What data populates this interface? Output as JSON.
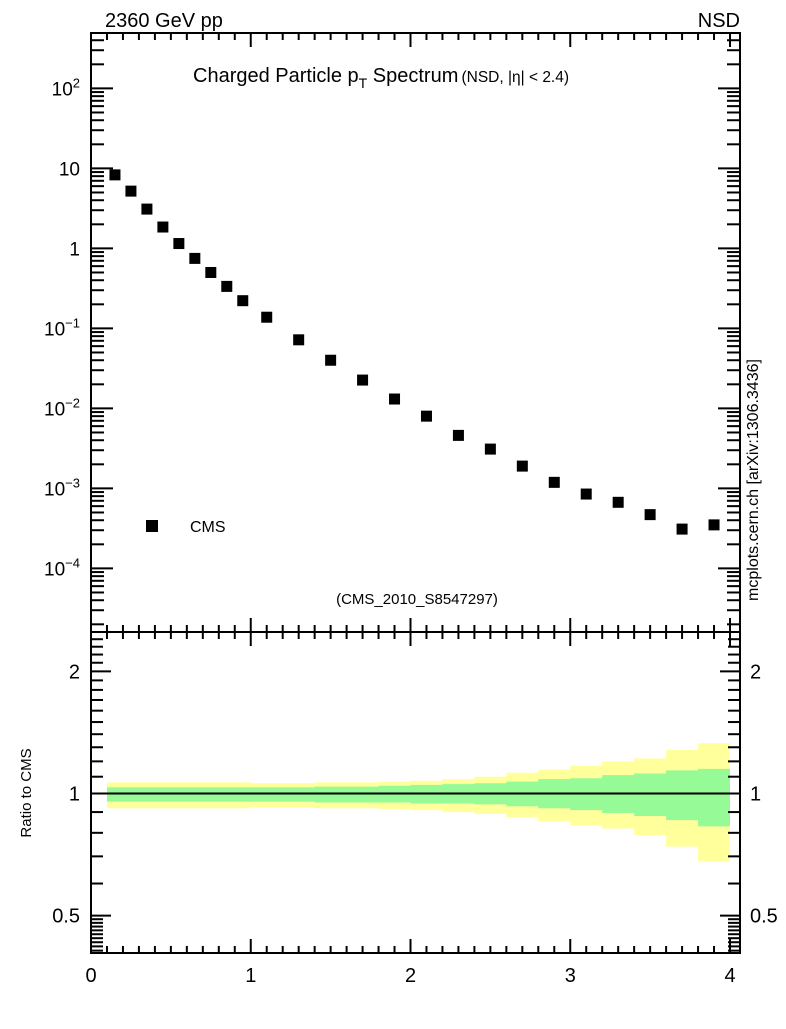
{
  "header": {
    "beam": "2360 GeV pp",
    "event_class": "NSD"
  },
  "title": {
    "text": "Charged Particle p",
    "subscript": "T",
    "text2": " Spectrum",
    "suffix": "(NSD, |η| < 2.4)"
  },
  "legend": {
    "entries": [
      {
        "label": "CMS",
        "marker": "black-filled-square"
      }
    ]
  },
  "watermark": "(CMS_2010_S8547297)",
  "citation": "mcplots.cern.ch [arXiv:1306.3436]",
  "chart_data": {
    "type": "scatter",
    "title": "Charged Particle pT Spectrum (NSD, |η| < 2.4)",
    "xlabel": "",
    "ylabel": "",
    "xlim": [
      0,
      4.07
    ],
    "ylog": true,
    "ylim": [
      1.6e-05,
      490
    ],
    "xticks": [
      0,
      1,
      2,
      3,
      4
    ],
    "ytick_exponents": [
      2,
      1,
      0,
      -1,
      -2,
      -3,
      -4
    ],
    "grid": false,
    "legend_position": "lower-left",
    "series": [
      {
        "name": "CMS",
        "marker": "filled-square",
        "color": "#000000",
        "x": [
          0.15,
          0.25,
          0.35,
          0.45,
          0.55,
          0.65,
          0.75,
          0.85,
          0.95,
          1.1,
          1.3,
          1.5,
          1.7,
          1.9,
          2.1,
          2.3,
          2.5,
          2.7,
          2.9,
          3.1,
          3.3,
          3.5,
          3.7,
          3.9
        ],
        "y": [
          8.3,
          5.2,
          3.1,
          1.85,
          1.15,
          0.75,
          0.5,
          0.335,
          0.222,
          0.138,
          0.072,
          0.04,
          0.0226,
          0.0131,
          0.008,
          0.0046,
          0.0031,
          0.0019,
          0.00119,
          0.00085,
          0.00067,
          0.00047,
          0.00031,
          0.00035
        ]
      }
    ],
    "ratio": {
      "ylabel": "Ratio to CMS",
      "ylog": true,
      "ylim": [
        0.4,
        2.5
      ],
      "ytick_values": [
        2,
        1,
        0.5
      ],
      "ytick_labels": [
        "2",
        "1",
        "0.5"
      ],
      "reference_line": 1,
      "band_colors": {
        "outer": "#ffff9b",
        "inner": "#96fa96"
      },
      "bin_edges": [
        0.1,
        0.2,
        0.3,
        0.4,
        0.5,
        0.6,
        0.7,
        0.8,
        0.9,
        1.0,
        1.2,
        1.4,
        1.6,
        1.8,
        2.0,
        2.2,
        2.4,
        2.6,
        2.8,
        3.0,
        3.2,
        3.4,
        3.6,
        3.8,
        4.0
      ],
      "outer_lo": [
        0.92,
        0.92,
        0.92,
        0.92,
        0.92,
        0.92,
        0.92,
        0.92,
        0.92,
        0.925,
        0.925,
        0.92,
        0.92,
        0.915,
        0.91,
        0.9,
        0.89,
        0.875,
        0.855,
        0.835,
        0.82,
        0.79,
        0.74,
        0.68
      ],
      "outer_hi": [
        1.065,
        1.065,
        1.065,
        1.065,
        1.065,
        1.065,
        1.065,
        1.065,
        1.065,
        1.06,
        1.06,
        1.065,
        1.065,
        1.07,
        1.075,
        1.085,
        1.1,
        1.125,
        1.145,
        1.17,
        1.2,
        1.22,
        1.28,
        1.33
      ],
      "inner_lo": [
        0.955,
        0.955,
        0.955,
        0.955,
        0.955,
        0.955,
        0.955,
        0.955,
        0.955,
        0.955,
        0.955,
        0.95,
        0.95,
        0.95,
        0.945,
        0.945,
        0.94,
        0.93,
        0.92,
        0.91,
        0.895,
        0.88,
        0.86,
        0.83
      ],
      "inner_hi": [
        1.035,
        1.035,
        1.035,
        1.035,
        1.035,
        1.035,
        1.035,
        1.035,
        1.035,
        1.035,
        1.035,
        1.04,
        1.04,
        1.045,
        1.05,
        1.055,
        1.06,
        1.07,
        1.085,
        1.09,
        1.11,
        1.12,
        1.14,
        1.15
      ]
    }
  }
}
